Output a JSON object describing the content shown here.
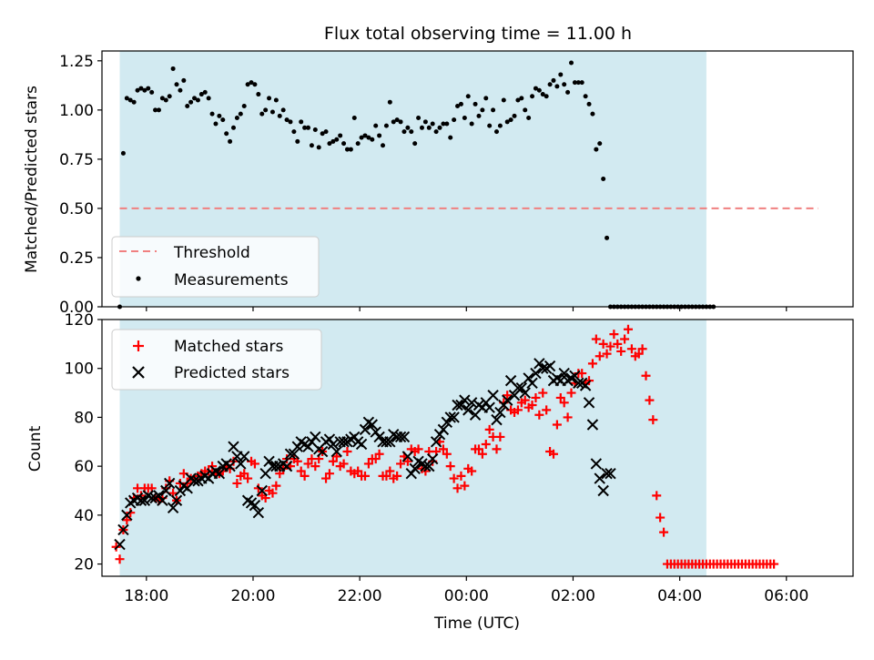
{
  "title": "Flux total observing time = 11.00 h",
  "xlabel": "Time (UTC)",
  "xticks": [
    "18:00",
    "20:00",
    "22:00",
    "00:00",
    "02:00",
    "04:00",
    "06:00"
  ],
  "colors": {
    "band": "#add8e6",
    "threshold": "#f08080",
    "matched": "#ff0000",
    "predicted": "#000000",
    "measurement": "#000000"
  },
  "chart_data": [
    {
      "type": "scatter",
      "ylabel": "Matched/Predicted stars",
      "xlim": [
        "17:10",
        "07:15"
      ],
      "ylim": [
        0,
        1.3
      ],
      "yticks": [
        "0.00",
        "0.25",
        "0.50",
        "0.75",
        "1.00",
        "1.25"
      ],
      "shaded_interval": [
        "17:30",
        "04:30"
      ],
      "threshold": {
        "name": "Threshold",
        "value": 0.5,
        "x_range": [
          "17:30",
          "06:36"
        ]
      },
      "legend": {
        "placement": "lower-left",
        "entries": [
          "Threshold",
          "Measurements"
        ]
      },
      "series": [
        {
          "name": "Measurements",
          "x_start": "17:30",
          "x_step_min": 4,
          "values": [
            0.0,
            0.78,
            1.06,
            1.05,
            1.04,
            1.1,
            1.11,
            1.1,
            1.11,
            1.09,
            1.0,
            1.0,
            1.06,
            1.05,
            1.07,
            1.21,
            1.13,
            1.1,
            1.15,
            1.02,
            1.04,
            1.06,
            1.05,
            1.08,
            1.09,
            1.06,
            0.98,
            0.93,
            0.97,
            0.95,
            0.88,
            0.84,
            0.91,
            0.96,
            0.98,
            1.02,
            1.13,
            1.14,
            1.13,
            1.08,
            0.98,
            1.0,
            1.06,
            0.99,
            1.05,
            0.97,
            1.0,
            0.95,
            0.94,
            0.89,
            0.84,
            0.94,
            0.91,
            0.91,
            0.82,
            0.9,
            0.81,
            0.88,
            0.89,
            0.83,
            0.84,
            0.85,
            0.87,
            0.83,
            0.8,
            0.8,
            0.96,
            0.83,
            0.86,
            0.87,
            0.86,
            0.85,
            0.92,
            0.87,
            0.82,
            0.92,
            1.04,
            0.94,
            0.95,
            0.94,
            0.89,
            0.91,
            0.89,
            0.83,
            0.96,
            0.91,
            0.94,
            0.91,
            0.93,
            0.89,
            0.91,
            0.93,
            0.93,
            0.86,
            0.95,
            1.02,
            1.03,
            0.96,
            1.07,
            0.93,
            1.03,
            0.97,
            1.0,
            1.06,
            0.92,
            1.0,
            0.89,
            0.92,
            1.05,
            0.94,
            0.95,
            0.97,
            1.05,
            1.06,
            1.0,
            0.96,
            1.07,
            1.11,
            1.1,
            1.08,
            1.07,
            1.13,
            1.15,
            1.12,
            1.18,
            1.13,
            1.09,
            1.24,
            1.14,
            1.14,
            1.14,
            1.07,
            1.03,
            0.98,
            0.8,
            0.83,
            0.65,
            0.35,
            0.0,
            0.0,
            0.0,
            0.0,
            0.0,
            0.0,
            0.0,
            0.0,
            0.0,
            0.0,
            0.0,
            0.0,
            0.0,
            0.0,
            0.0,
            0.0,
            0.0,
            0.0,
            0.0,
            0.0,
            0.0,
            0.0,
            0.0,
            0.0,
            0.0,
            0.0,
            0.0,
            0.0,
            0.0,
            0.0
          ]
        }
      ]
    },
    {
      "type": "scatter",
      "ylabel": "Count",
      "xlim": [
        "17:10",
        "07:15"
      ],
      "ylim": [
        15,
        120
      ],
      "yticks": [
        "20",
        "40",
        "60",
        "80",
        "100",
        "120"
      ],
      "shaded_interval": [
        "17:30",
        "04:30"
      ],
      "legend": {
        "placement": "upper-left",
        "entries": [
          "Matched stars",
          "Predicted stars"
        ]
      },
      "series": [
        {
          "name": "Matched stars",
          "marker": "+",
          "x_start": "17:26",
          "x_step_min": 4,
          "values": [
            27,
            22,
            34,
            38,
            41,
            47,
            51,
            48,
            51,
            51,
            51,
            47,
            46,
            47,
            51,
            54,
            49,
            46,
            53,
            57,
            53,
            55,
            55,
            56,
            57,
            58,
            58,
            60,
            57,
            57,
            58,
            60,
            59,
            62,
            53,
            56,
            57,
            55,
            62,
            61,
            51,
            48,
            47,
            50,
            49,
            52,
            57,
            59,
            63,
            60,
            63,
            62,
            58,
            56,
            61,
            63,
            60,
            63,
            66,
            55,
            57,
            62,
            64,
            60,
            61,
            66,
            58,
            57,
            58,
            56,
            56,
            61,
            63,
            63,
            65,
            56,
            56,
            58,
            55,
            56,
            61,
            64,
            62,
            67,
            66,
            67,
            59,
            58,
            66,
            62,
            66,
            70,
            67,
            65,
            60,
            55,
            51,
            56,
            52,
            59,
            58,
            67,
            67,
            65,
            69,
            75,
            72,
            67,
            72,
            86,
            89,
            83,
            82,
            83,
            86,
            87,
            84,
            85,
            88,
            81,
            90,
            83,
            66,
            65,
            77,
            88,
            86,
            80,
            90,
            94,
            98,
            98,
            94,
            95,
            102,
            112,
            105,
            110,
            106,
            109,
            114,
            110,
            107,
            112,
            116,
            108,
            105,
            106,
            108,
            97,
            87,
            79,
            48,
            39,
            33,
            20,
            20,
            20,
            20,
            20,
            20,
            20,
            20,
            20,
            20,
            20,
            20,
            20,
            20,
            20,
            20,
            20,
            20,
            20,
            20,
            20,
            20,
            20,
            20,
            20,
            20,
            20,
            20,
            20,
            20,
            20
          ]
        },
        {
          "name": "Predicted stars",
          "marker": "x",
          "x_start": "17:30",
          "x_step_min": 4,
          "values": [
            28,
            34,
            40,
            45,
            46,
            47,
            46,
            46,
            48,
            47,
            47,
            48,
            46,
            50,
            53,
            43,
            46,
            50,
            52,
            51,
            55,
            54,
            54,
            55,
            56,
            55,
            57,
            58,
            57,
            60,
            61,
            60,
            68,
            64,
            61,
            64,
            46,
            45,
            44,
            41,
            50,
            57,
            62,
            60,
            60,
            60,
            61,
            60,
            65,
            65,
            68,
            70,
            69,
            68,
            70,
            72,
            67,
            66,
            70,
            71,
            69,
            66,
            70,
            70,
            70,
            71,
            72,
            70,
            69,
            75,
            78,
            77,
            74,
            72,
            70,
            70,
            70,
            73,
            72,
            72,
            72,
            64,
            57,
            59,
            62,
            61,
            60,
            60,
            63,
            70,
            73,
            75,
            78,
            80,
            80,
            85,
            85,
            87,
            83,
            86,
            81,
            85,
            84,
            86,
            84,
            89,
            79,
            82,
            85,
            87,
            95,
            89,
            92,
            92,
            90,
            96,
            94,
            98,
            102,
            100,
            100,
            101,
            95,
            96,
            95,
            98,
            95,
            96,
            97,
            94,
            94,
            93,
            86,
            77,
            61,
            55,
            50,
            57,
            57
          ]
        }
      ]
    }
  ]
}
